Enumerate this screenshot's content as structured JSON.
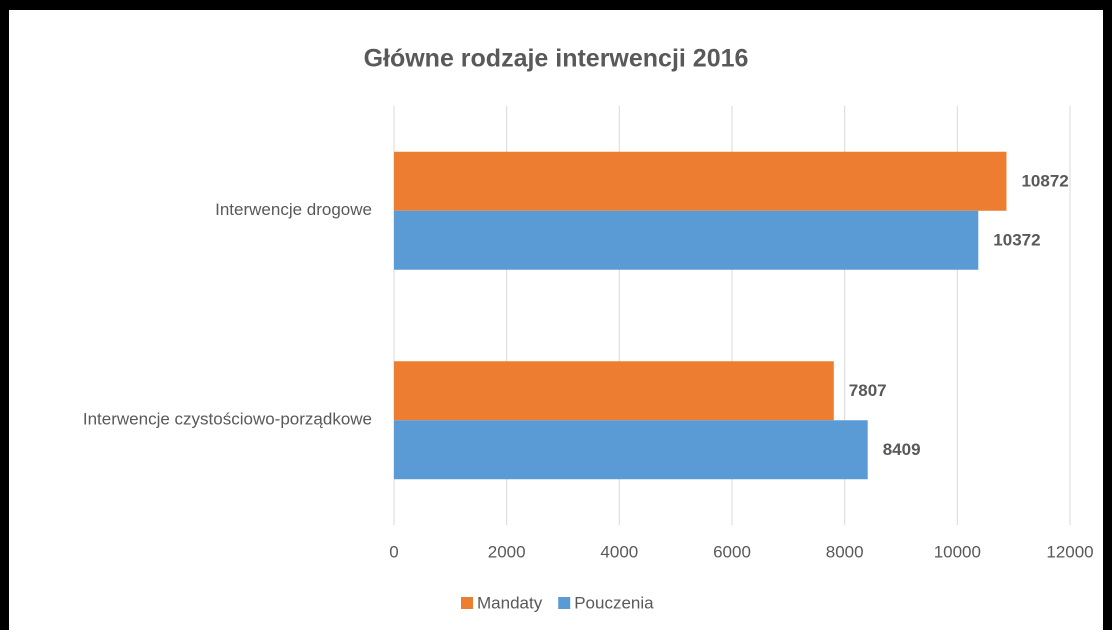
{
  "chart_data": {
    "type": "bar",
    "orientation": "horizontal",
    "title": "Główne rodzaje interwencji 2016",
    "categories": [
      "Interwencje drogowe",
      "Interwencje czystościowo-porządkowe"
    ],
    "series": [
      {
        "name": "Mandaty",
        "color": "#ed7d31",
        "values": [
          10872,
          7807
        ]
      },
      {
        "name": "Pouczenia",
        "color": "#5b9bd5",
        "values": [
          10372,
          8409
        ]
      }
    ],
    "xlim": [
      0,
      12000
    ],
    "xticks": [
      0,
      2000,
      4000,
      6000,
      8000,
      10000,
      12000
    ],
    "grid": true,
    "legend": "bottom"
  }
}
